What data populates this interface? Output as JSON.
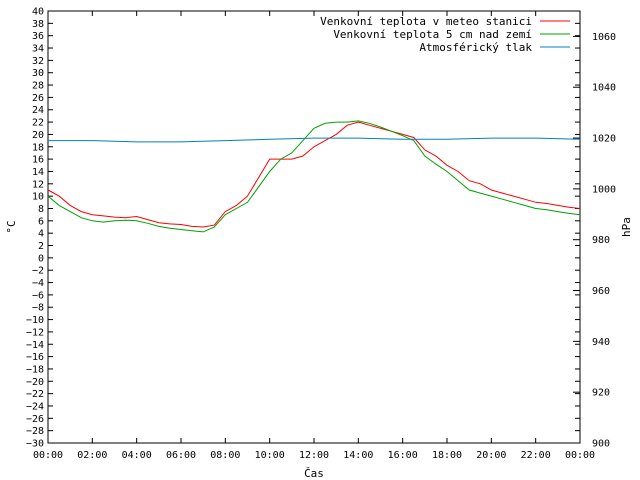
{
  "chart_data": {
    "type": "line",
    "xlabel": "Čas",
    "ylabel_left": "°C",
    "ylabel_right": "hPa",
    "ylim_left": [
      -30,
      40
    ],
    "ylim_right": [
      900,
      1070
    ],
    "xlim": [
      0,
      24
    ],
    "x_ticks": [
      "00:00",
      "02:00",
      "04:00",
      "06:00",
      "08:00",
      "10:00",
      "12:00",
      "14:00",
      "16:00",
      "18:00",
      "20:00",
      "22:00",
      "00:00"
    ],
    "y_ticks_left": [
      40,
      38,
      36,
      34,
      32,
      30,
      28,
      26,
      24,
      22,
      20,
      18,
      16,
      14,
      12,
      10,
      8,
      6,
      4,
      2,
      0,
      -2,
      -4,
      -6,
      -8,
      -10,
      -12,
      -14,
      -16,
      -18,
      -20,
      -22,
      -24,
      -26,
      -28,
      -30
    ],
    "y_ticks_right": [
      1060,
      1040,
      1020,
      1000,
      980,
      960,
      940,
      920,
      900
    ],
    "grid": false,
    "legend_position": "top-right",
    "series": [
      {
        "name": "Venkovní teplota v meteo stanici",
        "axis": "left",
        "color": "#ff0000",
        "x": [
          0,
          0.5,
          1,
          1.5,
          2,
          2.5,
          3,
          3.5,
          4,
          4.5,
          5,
          5.5,
          6,
          6.5,
          7,
          7.5,
          8,
          8.5,
          9,
          9.5,
          10,
          10.5,
          11,
          11.5,
          12,
          12.5,
          13,
          13.5,
          14,
          14.5,
          15,
          15.5,
          16,
          16.5,
          17,
          17.5,
          18,
          18.5,
          19,
          19.5,
          20,
          20.5,
          21,
          21.5,
          22,
          22.5,
          23,
          23.5,
          24
        ],
        "values": [
          11,
          10,
          8.5,
          7.5,
          7,
          6.8,
          6.6,
          6.5,
          6.7,
          6.2,
          5.7,
          5.5,
          5.4,
          5.1,
          5,
          5.3,
          7.5,
          8.5,
          10,
          13,
          16,
          16,
          16,
          16.5,
          18,
          19,
          20,
          21.5,
          22,
          21.5,
          21,
          20.5,
          20,
          19.5,
          17.5,
          16.5,
          15,
          14,
          12.5,
          12,
          11,
          10.5,
          10,
          9.5,
          9,
          8.8,
          8.5,
          8.2,
          8
        ]
      },
      {
        "name": "Venkovní teplota 5 cm nad zemí",
        "axis": "left",
        "color": "#00a000",
        "x": [
          0,
          0.5,
          1,
          1.5,
          2,
          2.5,
          3,
          3.5,
          4,
          4.5,
          5,
          5.5,
          6,
          6.5,
          7,
          7.5,
          8,
          8.5,
          9,
          9.5,
          10,
          10.5,
          11,
          11.5,
          12,
          12.5,
          13,
          13.5,
          14,
          14.5,
          15,
          15.5,
          16,
          16.5,
          17,
          17.5,
          18,
          18.5,
          19,
          19.5,
          20,
          20.5,
          21,
          21.5,
          22,
          22.5,
          23,
          23.5,
          24
        ],
        "values": [
          10,
          8.5,
          7.5,
          6.5,
          6,
          5.8,
          6,
          6.1,
          6,
          5.6,
          5.1,
          4.8,
          4.6,
          4.4,
          4.2,
          5,
          7,
          8,
          9,
          11.5,
          14,
          16,
          17,
          19,
          21,
          21.8,
          22,
          22,
          22.2,
          21.8,
          21.2,
          20.5,
          19.8,
          19,
          16.5,
          15.2,
          14,
          12.5,
          11,
          10.5,
          10,
          9.5,
          9,
          8.5,
          8,
          7.8,
          7.5,
          7.2,
          7
        ]
      },
      {
        "name": "Atmosférický tlak",
        "axis": "right",
        "color": "#0080c0",
        "x": [
          0,
          2,
          4,
          6,
          8,
          10,
          12,
          14,
          16,
          18,
          20,
          22,
          24
        ],
        "values": [
          1019,
          1019,
          1018.5,
          1018.5,
          1019,
          1019.5,
          1020,
          1020,
          1019.5,
          1019.5,
          1020,
          1020,
          1019.5
        ]
      }
    ]
  }
}
